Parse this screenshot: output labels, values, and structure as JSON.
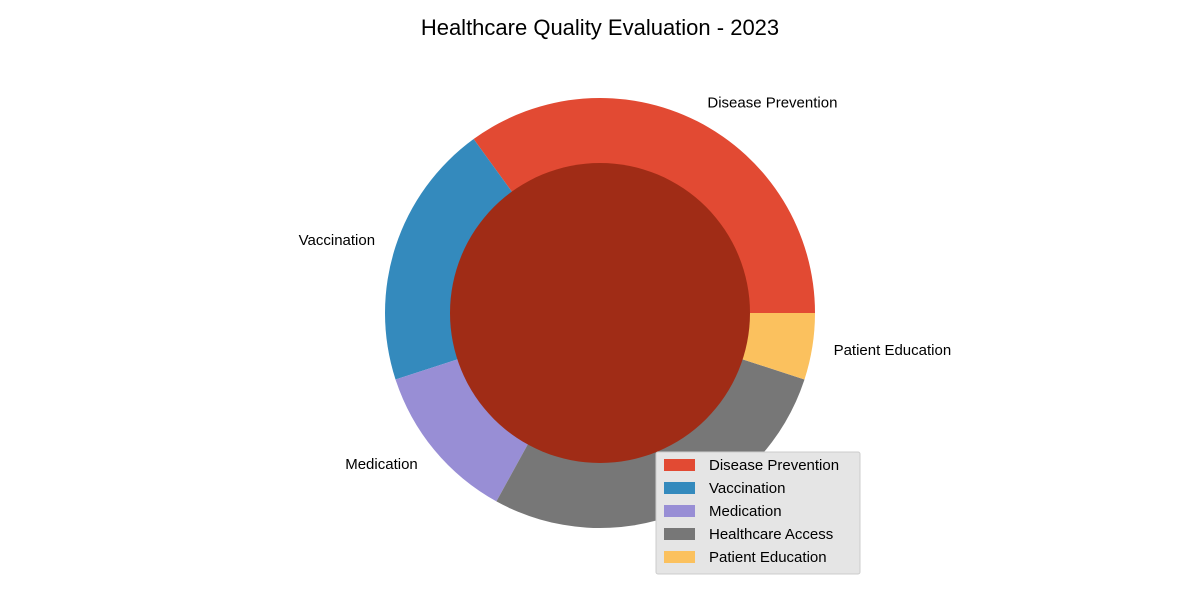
{
  "chart_data": {
    "type": "pie",
    "variant": "donut",
    "title": "Healthcare Quality Evaluation - 2023",
    "start_angle_deg": 0,
    "direction": "counterclockwise",
    "center_fill": "#a02c16",
    "categories": [
      "Disease Prevention",
      "Vaccination",
      "Medication",
      "Healthcare Access",
      "Patient Education"
    ],
    "values": [
      35,
      20,
      12,
      28,
      5
    ],
    "colors": [
      "#e24a33",
      "#348abd",
      "#988ed5",
      "#777777",
      "#fbc15e"
    ],
    "legend": {
      "placement": "lower-right",
      "entries": [
        "Disease Prevention",
        "Vaccination",
        "Medication",
        "Healthcare Access",
        "Patient Education"
      ],
      "background": "#e5e5e5"
    }
  }
}
